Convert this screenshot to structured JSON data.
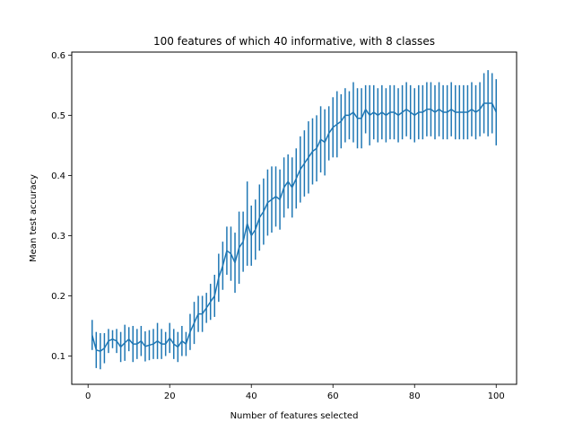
{
  "chart_data": {
    "type": "line",
    "title": "100 features of which 40 informative, with 8 classes",
    "xlabel": "Number of features selected",
    "ylabel": "Mean test accuracy",
    "xlim": [
      -4,
      105
    ],
    "ylim": [
      0.053,
      0.605
    ],
    "xticks": [
      "0",
      "20",
      "40",
      "60",
      "80",
      "100"
    ],
    "xtick_values": [
      0,
      20,
      40,
      60,
      80,
      100
    ],
    "yticks": [
      "0.1",
      "0.2",
      "0.3",
      "0.4",
      "0.5",
      "0.6"
    ],
    "ytick_values": [
      0.1,
      0.2,
      0.3,
      0.4,
      0.5,
      0.6
    ],
    "grid": false,
    "color": "#1f77b4",
    "series": [
      {
        "x": [
          1,
          2,
          3,
          4,
          5,
          6,
          7,
          8,
          9,
          10,
          11,
          12,
          13,
          14,
          15,
          16,
          17,
          18,
          19,
          20,
          21,
          22,
          23,
          24,
          25,
          26,
          27,
          28,
          29,
          30,
          31,
          32,
          33,
          34,
          35,
          36,
          37,
          38,
          39,
          40,
          41,
          42,
          43,
          44,
          45,
          46,
          47,
          48,
          49,
          50,
          51,
          52,
          53,
          54,
          55,
          56,
          57,
          58,
          59,
          60,
          61,
          62,
          63,
          64,
          65,
          66,
          67,
          68,
          69,
          70,
          71,
          72,
          73,
          74,
          75,
          76,
          77,
          78,
          79,
          80,
          81,
          82,
          83,
          84,
          85,
          86,
          87,
          88,
          89,
          90,
          91,
          92,
          93,
          94,
          95,
          96,
          97,
          98,
          99,
          100
        ],
        "y": [
          0.135,
          0.11,
          0.108,
          0.113,
          0.125,
          0.128,
          0.125,
          0.115,
          0.122,
          0.128,
          0.12,
          0.12,
          0.125,
          0.116,
          0.118,
          0.12,
          0.125,
          0.12,
          0.12,
          0.13,
          0.12,
          0.115,
          0.125,
          0.12,
          0.14,
          0.155,
          0.17,
          0.17,
          0.18,
          0.19,
          0.2,
          0.23,
          0.25,
          0.275,
          0.27,
          0.255,
          0.28,
          0.29,
          0.32,
          0.3,
          0.31,
          0.33,
          0.34,
          0.355,
          0.36,
          0.365,
          0.36,
          0.38,
          0.39,
          0.38,
          0.395,
          0.41,
          0.42,
          0.43,
          0.44,
          0.445,
          0.46,
          0.455,
          0.47,
          0.48,
          0.485,
          0.49,
          0.5,
          0.5,
          0.505,
          0.495,
          0.495,
          0.51,
          0.5,
          0.505,
          0.5,
          0.505,
          0.5,
          0.505,
          0.505,
          0.5,
          0.505,
          0.51,
          0.505,
          0.5,
          0.505,
          0.505,
          0.51,
          0.51,
          0.505,
          0.51,
          0.505,
          0.505,
          0.51,
          0.505,
          0.505,
          0.505,
          0.505,
          0.51,
          0.505,
          0.51,
          0.52,
          0.52,
          0.52,
          0.505
        ],
        "err": [
          0.025,
          0.03,
          0.03,
          0.025,
          0.02,
          0.015,
          0.02,
          0.025,
          0.03,
          0.02,
          0.03,
          0.025,
          0.025,
          0.025,
          0.025,
          0.025,
          0.03,
          0.025,
          0.02,
          0.025,
          0.025,
          0.025,
          0.025,
          0.02,
          0.03,
          0.035,
          0.03,
          0.03,
          0.025,
          0.03,
          0.035,
          0.04,
          0.04,
          0.04,
          0.045,
          0.05,
          0.06,
          0.05,
          0.07,
          0.05,
          0.05,
          0.055,
          0.055,
          0.055,
          0.055,
          0.05,
          0.05,
          0.05,
          0.045,
          0.05,
          0.05,
          0.055,
          0.055,
          0.06,
          0.055,
          0.055,
          0.055,
          0.055,
          0.045,
          0.05,
          0.055,
          0.045,
          0.045,
          0.04,
          0.05,
          0.05,
          0.05,
          0.04,
          0.05,
          0.045,
          0.045,
          0.045,
          0.045,
          0.045,
          0.045,
          0.045,
          0.045,
          0.045,
          0.045,
          0.045,
          0.045,
          0.045,
          0.045,
          0.045,
          0.045,
          0.045,
          0.045,
          0.045,
          0.045,
          0.045,
          0.045,
          0.045,
          0.045,
          0.045,
          0.045,
          0.045,
          0.05,
          0.055,
          0.05,
          0.055
        ]
      }
    ]
  }
}
